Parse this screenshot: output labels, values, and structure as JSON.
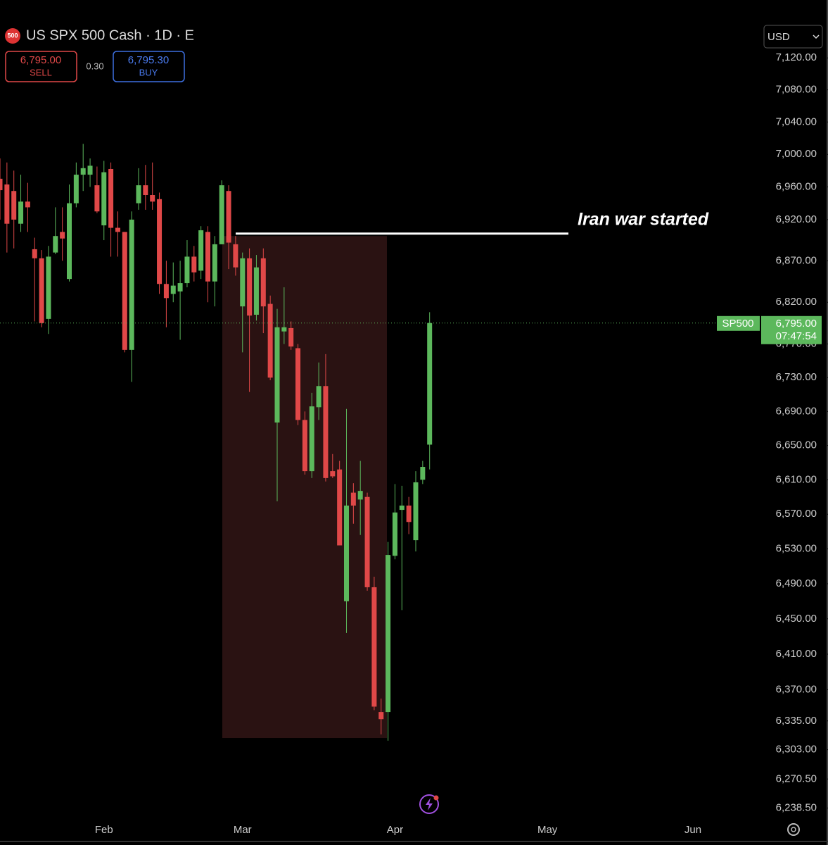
{
  "chart_data": {
    "type": "candlestick",
    "title": "US SPX 500 Cash · 1D · E",
    "symbol_badge": "500",
    "sell": {
      "price": "6,795.00",
      "label": "SELL"
    },
    "spread": "0.30",
    "buy": {
      "price": "6,795.30",
      "label": "BUY"
    },
    "currency": "USD",
    "log_scale": true,
    "ylim": [
      6225,
      7193
    ],
    "yticks": [
      {
        "value": 7120,
        "label": "7,120.00"
      },
      {
        "value": 7080,
        "label": "7,080.00"
      },
      {
        "value": 7040,
        "label": "7,040.00"
      },
      {
        "value": 7000,
        "label": "7,000.00"
      },
      {
        "value": 6960,
        "label": "6,960.00"
      },
      {
        "value": 6920,
        "label": "6,920.00"
      },
      {
        "value": 6870,
        "label": "6,870.00"
      },
      {
        "value": 6820,
        "label": "6,820.00"
      },
      {
        "value": 6770,
        "label": "6,770.00"
      },
      {
        "value": 6730,
        "label": "6,730.00"
      },
      {
        "value": 6690,
        "label": "6,690.00"
      },
      {
        "value": 6650,
        "label": "6,650.00"
      },
      {
        "value": 6610,
        "label": "6,610.00"
      },
      {
        "value": 6570,
        "label": "6,570.00"
      },
      {
        "value": 6530,
        "label": "6,530.00"
      },
      {
        "value": 6490,
        "label": "6,490.00"
      },
      {
        "value": 6450,
        "label": "6,450.00"
      },
      {
        "value": 6410,
        "label": "6,410.00"
      },
      {
        "value": 6370,
        "label": "6,370.00"
      },
      {
        "value": 6335,
        "label": "6,335.00"
      },
      {
        "value": 6303,
        "label": "6,303.00"
      },
      {
        "value": 6270.5,
        "label": "6,270.50"
      },
      {
        "value": 6238.5,
        "label": "6,238.50"
      }
    ],
    "xticks": [
      {
        "value": 15,
        "label": "Feb"
      },
      {
        "value": 35,
        "label": "Mar"
      },
      {
        "value": 57,
        "label": "Apr"
      },
      {
        "value": 79,
        "label": "May"
      },
      {
        "value": 100,
        "label": "Jun"
      }
    ],
    "up_color": "#5cb85c",
    "down_color": "#e04848",
    "open": [
      6970,
      6963,
      6955,
      6915,
      6942,
      6884,
      6873,
      6800,
      6880,
      6905,
      6848,
      6940,
      6975,
      6975,
      6962,
      6913,
      6982,
      6910,
      6905,
      6763,
      6940,
      6962,
      6950,
      6945,
      6842,
      6830,
      6833,
      6843,
      6875,
      6858,
      6905,
      6845,
      6890,
      6955,
      6890,
      6815,
      6873,
      6805,
      6873,
      6818,
      6677,
      6785,
      6789,
      6765,
      6680,
      6620,
      6695,
      6720,
      6620,
      6622,
      6470,
      6595,
      6587,
      6590,
      6486,
      6345,
      6345,
      6522,
      6575,
      6580,
      6540,
      6610,
      6651
    ],
    "high": [
      6995,
      6990,
      6980,
      6975,
      6965,
      6898,
      6883,
      6888,
      6935,
      6935,
      6963,
      6990,
      7013,
      6995,
      6985,
      6992,
      6990,
      6930,
      6905,
      6930,
      6983,
      6987,
      6990,
      6953,
      6870,
      6868,
      6870,
      6895,
      6888,
      6912,
      6912,
      6900,
      6968,
      6962,
      6900,
      6880,
      6885,
      6877,
      6885,
      6828,
      6812,
      6838,
      6797,
      6770,
      6690,
      6712,
      6748,
      6758,
      6640,
      6632,
      6693,
      6606,
      6632,
      6595,
      6498,
      6360,
      6538,
      6605,
      6603,
      6590,
      6620,
      6632,
      6808
    ],
    "low": [
      6920,
      6880,
      6885,
      6905,
      6905,
      6797,
      6790,
      6782,
      6878,
      6870,
      6845,
      6935,
      6955,
      6960,
      6928,
      6895,
      6875,
      6875,
      6760,
      6725,
      6932,
      6932,
      6932,
      6830,
      6790,
      6820,
      6775,
      6838,
      6845,
      6848,
      6820,
      6815,
      6890,
      6860,
      6852,
      6760,
      6713,
      6798,
      6783,
      6727,
      6585,
      6770,
      6763,
      6674,
      6616,
      6612,
      6680,
      6608,
      6612,
      6534,
      6434,
      6559,
      6546,
      6482,
      6347,
      6320,
      6313,
      6518,
      6460,
      6547,
      6527,
      6605,
      6622
    ],
    "close": [
      6956,
      6915,
      6920,
      6942,
      6935,
      6873,
      6795,
      6875,
      6900,
      6897,
      6940,
      6975,
      6983,
      6986,
      6930,
      6978,
      6910,
      6905,
      6763,
      6920,
      6962,
      6950,
      6942,
      6842,
      6825,
      6840,
      6843,
      6875,
      6856,
      6907,
      6845,
      6890,
      6962,
      6892,
      6862,
      6873,
      6804,
      6862,
      6815,
      6730,
      6790,
      6790,
      6767,
      6680,
      6620,
      6696,
      6720,
      6612,
      6614,
      6534,
      6580,
      6580,
      6597,
      6486,
      6351,
      6337,
      6523,
      6572,
      6580,
      6561,
      6607,
      6625,
      6795
    ],
    "annotation": {
      "text": "Iran war started",
      "price": 6903
    },
    "highlight_range": [
      6900,
      6316
    ],
    "last_price": {
      "name": "SP500",
      "value": 6795,
      "label": "6,795.00",
      "countdown": "07:47:54"
    }
  }
}
